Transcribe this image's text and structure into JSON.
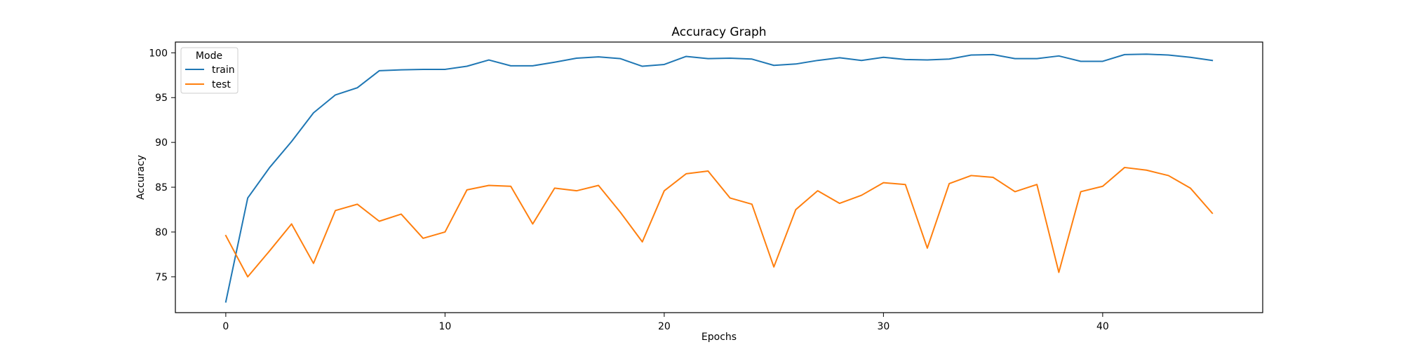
{
  "chart_data": {
    "type": "line",
    "title": "Accuracy Graph",
    "xlabel": "Epochs",
    "ylabel": "Accuracy",
    "xlim": [
      -2.3,
      47.3
    ],
    "ylim": [
      71.0,
      101.2
    ],
    "xticks": [
      0,
      10,
      20,
      30,
      40
    ],
    "yticks": [
      75,
      80,
      85,
      90,
      95,
      100
    ],
    "grid": false,
    "legend": {
      "title": "Mode",
      "position": "top-left"
    },
    "x": [
      0,
      1,
      2,
      3,
      4,
      5,
      6,
      7,
      8,
      9,
      10,
      11,
      12,
      13,
      14,
      15,
      16,
      17,
      18,
      19,
      20,
      21,
      22,
      23,
      24,
      25,
      26,
      27,
      28,
      29,
      30,
      31,
      32,
      33,
      34,
      35,
      36,
      37,
      38,
      39,
      40,
      41,
      42,
      43,
      44,
      45
    ],
    "series": [
      {
        "name": "train",
        "color": "#1f77b4",
        "values": [
          72.2,
          83.8,
          87.2,
          90.1,
          93.3,
          95.3,
          96.1,
          98.0,
          98.1,
          98.15,
          98.15,
          98.5,
          99.2,
          98.55,
          98.55,
          98.95,
          99.4,
          99.55,
          99.35,
          98.5,
          98.7,
          99.6,
          99.35,
          99.4,
          99.3,
          98.6,
          98.75,
          99.15,
          99.45,
          99.15,
          99.5,
          99.25,
          99.2,
          99.3,
          99.75,
          99.8,
          99.35,
          99.35,
          99.65,
          99.05,
          99.05,
          99.8,
          99.85,
          99.75,
          99.5,
          99.15
        ]
      },
      {
        "name": "test",
        "color": "#ff7f0e",
        "values": [
          79.6,
          75.0,
          77.9,
          80.9,
          76.5,
          82.4,
          83.1,
          81.2,
          82.0,
          79.3,
          80.0,
          84.7,
          85.2,
          85.1,
          80.9,
          84.9,
          84.6,
          85.2,
          82.2,
          78.9,
          84.6,
          86.5,
          86.8,
          83.8,
          83.1,
          76.1,
          82.5,
          84.6,
          83.2,
          84.1,
          85.5,
          85.3,
          78.2,
          85.4,
          86.3,
          86.1,
          84.5,
          85.3,
          75.5,
          84.5,
          85.1,
          87.2,
          86.9,
          86.3,
          84.9,
          82.1
        ]
      }
    ]
  }
}
